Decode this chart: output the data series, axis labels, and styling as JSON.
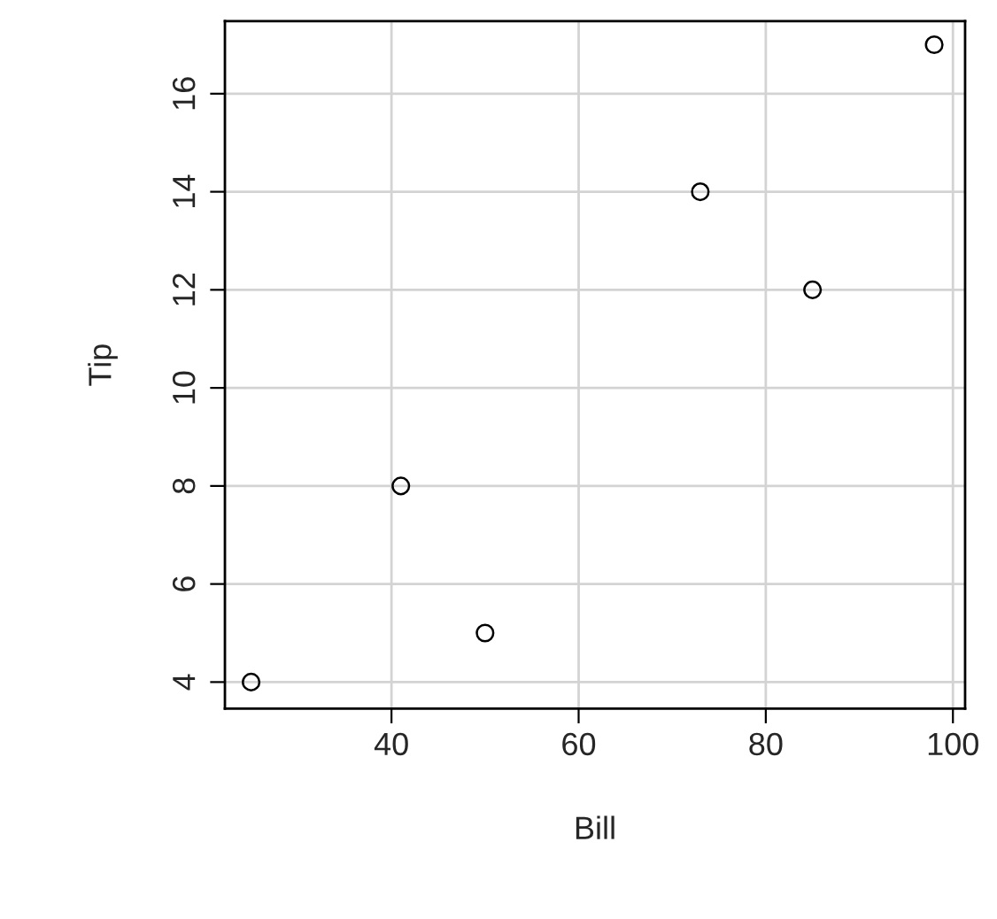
{
  "chart_data": {
    "type": "scatter",
    "xlabel": "Bill",
    "ylabel": "Tip",
    "x": [
      25,
      41,
      50,
      73,
      85,
      98
    ],
    "values": [
      4,
      8,
      5,
      14,
      12,
      17
    ],
    "color": "#000000",
    "marker": "circle",
    "xlim": [
      22.2,
      101.3
    ],
    "ylim": [
      3.46,
      17.48
    ],
    "xticks": [
      40,
      60,
      80,
      100
    ],
    "yticks": [
      4,
      6,
      8,
      10,
      12,
      14,
      16
    ],
    "grid": true,
    "legend": false
  }
}
